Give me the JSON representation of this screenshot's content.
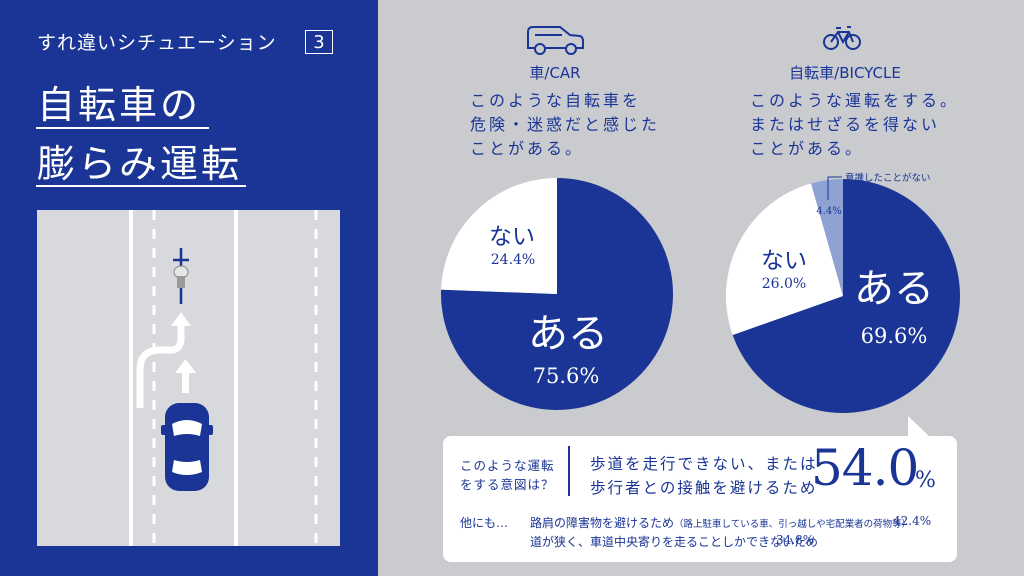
{
  "header": {
    "subtitle": "すれ違いシチュエーション",
    "scenario_number": "3",
    "title_line1": "自転車の",
    "title_line2": "膨らみ運転"
  },
  "icons": {
    "car": "car-icon",
    "bicycle": "bicycle-icon"
  },
  "columns": {
    "car": {
      "label": "車/CAR",
      "question": "このような自転車を\n危険・迷惑だと感じた\nことがある。"
    },
    "bicycle": {
      "label": "自転車/BICYCLE",
      "question": "このような運転をする。\nまたはせざるを得ない\nことがある。"
    }
  },
  "colors": {
    "navy": "#1a3596",
    "light_blue": "#8ea2d4",
    "white": "#ffffff",
    "gray_bg": "#c9cbcf"
  },
  "chart_data": [
    {
      "type": "pie",
      "slices": [
        {
          "label": "ある",
          "value": 75.6,
          "text": "75.6%"
        },
        {
          "label": "ない",
          "value": 24.4,
          "text": "24.4%"
        }
      ]
    },
    {
      "type": "pie",
      "slices": [
        {
          "label": "ある",
          "value": 69.6,
          "text": "69.6%"
        },
        {
          "label": "ない",
          "value": 26.0,
          "text": "26.0%"
        },
        {
          "label": "意識したことがない",
          "value": 4.4,
          "text": "4.4%"
        }
      ]
    }
  ],
  "callout": {
    "question": "このような運転\nをする意図は？",
    "main_reason": "歩道を走行できない、または\n歩行者との接触を避けるため",
    "main_value": "54.0",
    "main_unit": "%",
    "others_label": "他にも…",
    "reason2_main": "路肩の障害物を避けるため",
    "reason2_note": "（路上駐車している車、引っ越しや宅配業者の荷物等）",
    "reason2_value": "42.4%",
    "reason3": "道が狭く、車道中央寄りを走ることしかできないため",
    "reason3_value": "34.8%"
  }
}
